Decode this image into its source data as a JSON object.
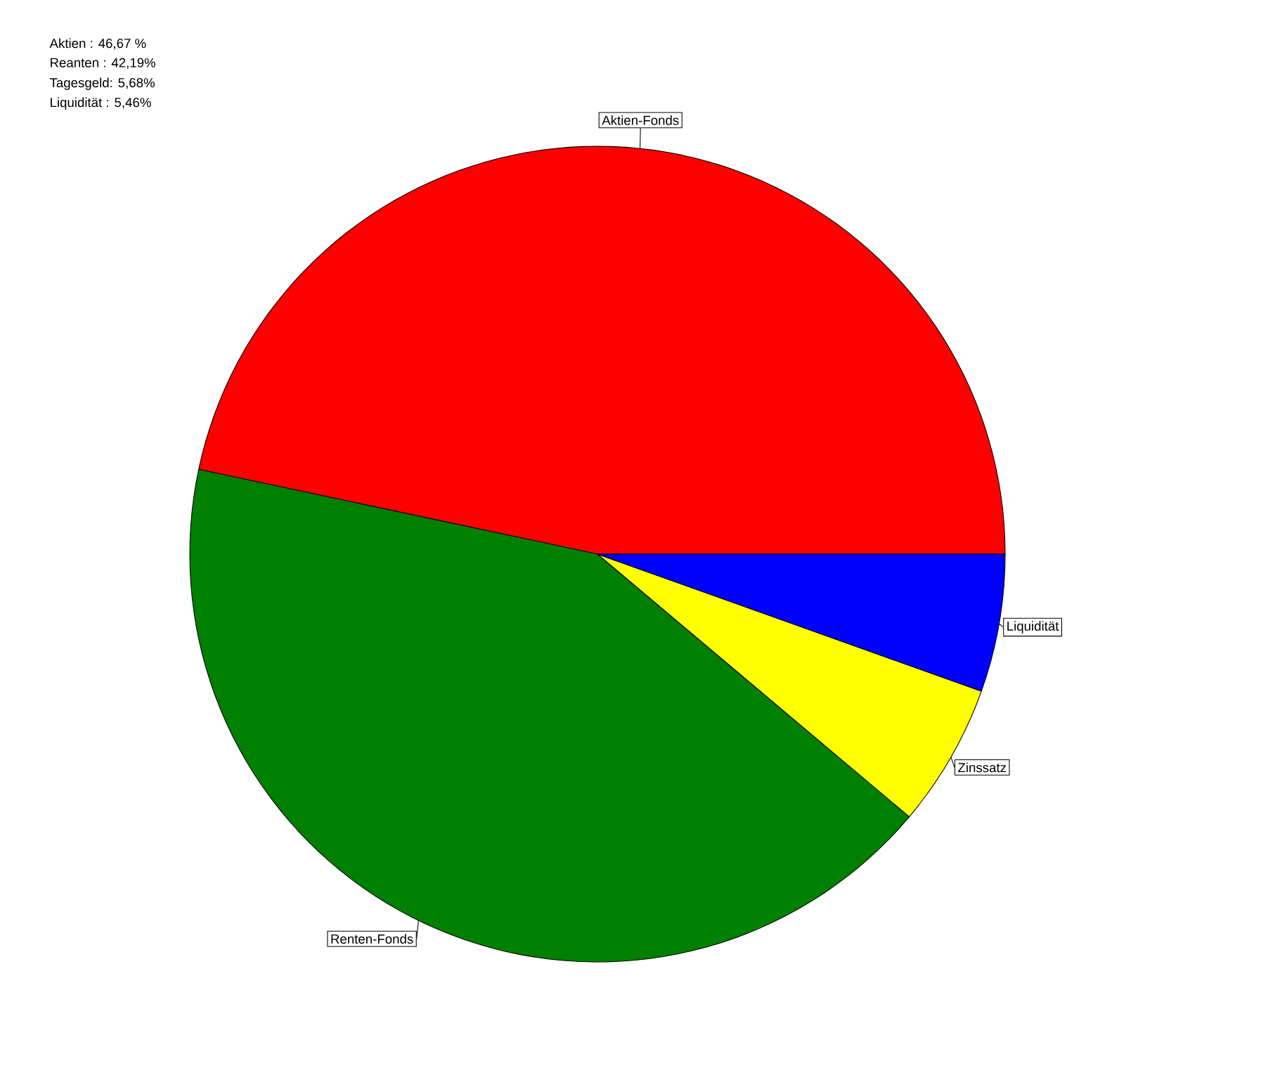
{
  "chart_data": {
    "type": "pie",
    "categories": [
      "Aktien-Fonds",
      "Renten-Fonds",
      "Zinssatz",
      "Liquidität"
    ],
    "values": [
      46.67,
      42.19,
      5.68,
      5.46
    ],
    "colors": [
      "#ff0000",
      "#008000",
      "#ffff00",
      "#0000ff"
    ],
    "annotations": [
      "Aktien :        46,67 %",
      "Reanten :      42,19%",
      "Tagesgeld:    5,68%",
      "Liquidität :     5,46%"
    ]
  }
}
